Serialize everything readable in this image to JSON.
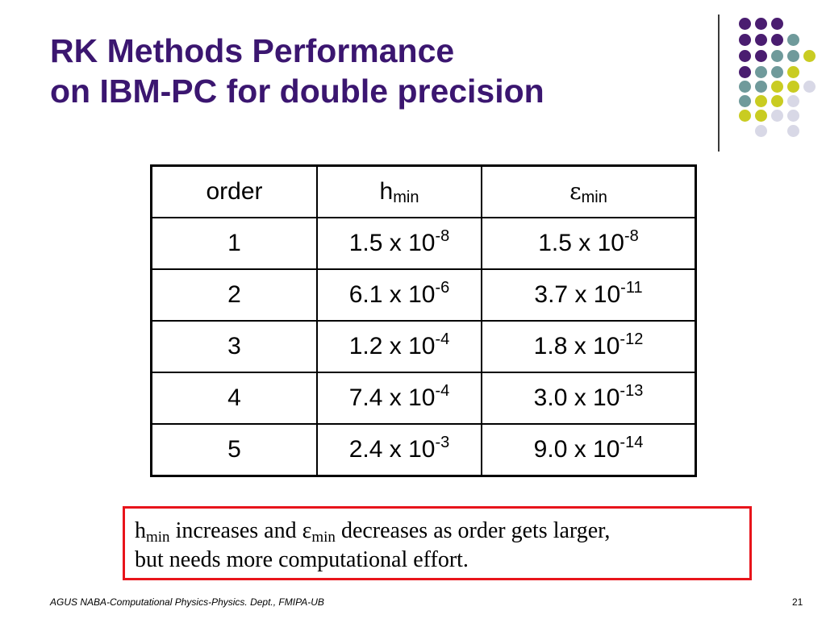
{
  "title": {
    "line1": "RK Methods Performance",
    "line2": "on IBM-PC for double precision"
  },
  "decoration": {
    "colors": {
      "purple": "#4a1d70",
      "teal": "#6f9a9b",
      "lime": "#c9cc22",
      "lavender": "#d8d8e6",
      "rule": "#3a3a3a"
    }
  },
  "table": {
    "header": {
      "order": "order",
      "h_symbol": "h",
      "h_subscript": "min",
      "eps_symbol": "ε",
      "eps_subscript": "min"
    },
    "rows": [
      {
        "order": "1",
        "h_mantissa": "1.5 x 10",
        "h_exp": "-8",
        "eps_mantissa": "1.5 x 10",
        "eps_exp": "-8"
      },
      {
        "order": "2",
        "h_mantissa": "6.1 x 10",
        "h_exp": "-6",
        "eps_mantissa": "3.7 x 10",
        "eps_exp": "-11"
      },
      {
        "order": "3",
        "h_mantissa": "1.2 x 10",
        "h_exp": "-4",
        "eps_mantissa": "1.8 x 10",
        "eps_exp": "-12"
      },
      {
        "order": "4",
        "h_mantissa": "7.4 x 10",
        "h_exp": "-4",
        "eps_mantissa": "3.0 x 10",
        "eps_exp": "-13"
      },
      {
        "order": "5",
        "h_mantissa": "2.4 x 10",
        "h_exp": "-3",
        "eps_mantissa": "9.0 x 10",
        "eps_exp": "-14"
      }
    ]
  },
  "note": {
    "h": "h",
    "h_sub": "min",
    "text1": " increases and ",
    "eps": "ε",
    "eps_sub": "min",
    "text2": " decreases as order gets larger,",
    "line2": "but needs more computational effort.",
    "border_color": "#e8141b"
  },
  "footer": {
    "text": "AGUS NABA-Computational Physics-Physics. Dept., FMIPA-UB",
    "page_number": "21"
  }
}
